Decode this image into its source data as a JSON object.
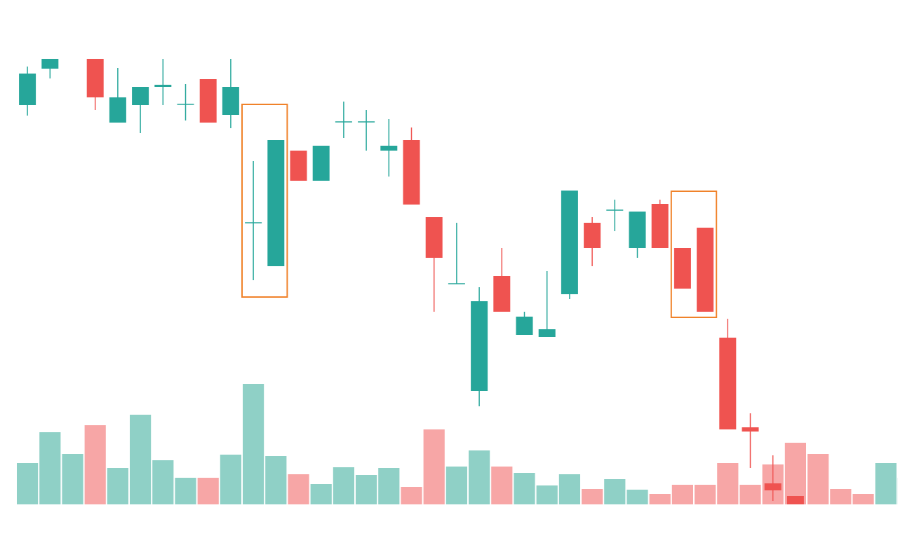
{
  "chart_data": {
    "type": "candlestick",
    "open": [
      570,
      622,
      null,
      636,
      545,
      570,
      596,
      571,
      607,
      556,
      402,
      340,
      505,
      462,
      546,
      546,
      505,
      520,
      410,
      315,
      162,
      326,
      242,
      239,
      300,
      402,
      420,
      366,
      429,
      366,
      395,
      238,
      110,
      30,
      12,
      null,
      null,
      null,
      null,
      null
    ],
    "high": [
      625,
      636,
      null,
      636,
      623,
      596,
      636,
      600,
      607,
      636,
      490,
      520,
      505,
      512,
      575,
      563,
      550,
      538,
      410,
      402,
      310,
      366,
      275,
      333,
      448,
      410,
      435,
      418,
      435,
      366,
      395,
      265,
      130,
      70,
      12,
      null,
      null,
      null,
      null,
      null
    ],
    "low": [
      555,
      608,
      null,
      563,
      545,
      530,
      570,
      548,
      545,
      537,
      320,
      340,
      462,
      462,
      523,
      505,
      468,
      428,
      275,
      315,
      140,
      275,
      242,
      239,
      293,
      340,
      390,
      352,
      366,
      308,
      275,
      107,
      52,
      5,
      0,
      null,
      null,
      null,
      null,
      null
    ],
    "close": [
      615,
      636,
      null,
      581,
      581,
      596,
      599,
      571,
      545,
      596,
      402,
      520,
      462,
      512,
      546,
      546,
      512,
      428,
      352,
      315,
      290,
      275,
      268,
      250,
      448,
      366,
      420,
      418,
      366,
      308,
      275,
      107,
      104,
      20,
      0,
      null,
      null,
      null,
      null,
      null
    ],
    "ylim": [
      0,
      640
    ],
    "up_color": "#26a69a",
    "down_color": "#ef5350",
    "volume": [
      59,
      103,
      72,
      113,
      52,
      128,
      63,
      38,
      38,
      71,
      172,
      69,
      43,
      29,
      53,
      42,
      52,
      25,
      107,
      54,
      77,
      54,
      45,
      27,
      43,
      22,
      36,
      21,
      15,
      28,
      28,
      59,
      28,
      57,
      88,
      72,
      22,
      15,
      59,
      38
    ],
    "volume_colors": [
      "#8fd0c6",
      "#8fd0c6",
      "#8fd0c6",
      "#f7a6a6",
      "#8fd0c6",
      "#8fd0c6",
      "#8fd0c6",
      "#8fd0c6",
      "#f7a6a6",
      "#8fd0c6",
      "#8fd0c6",
      "#8fd0c6",
      "#f7a6a6",
      "#8fd0c6",
      "#8fd0c6",
      "#8fd0c6",
      "#8fd0c6",
      "#f7a6a6",
      "#f7a6a6",
      "#8fd0c6",
      "#8fd0c6",
      "#f7a6a6",
      "#8fd0c6",
      "#8fd0c6",
      "#8fd0c6",
      "#f7a6a6",
      "#8fd0c6",
      "#8fd0c6",
      "#f7a6a6",
      "#f7a6a6",
      "#f7a6a6",
      "#f7a6a6",
      "#f7a6a6",
      "#f7a6a6",
      "#f7a6a6",
      "#f7a6a6",
      "#f7a6a6",
      "#f7a6a6",
      "#8fd0c6",
      "#8fd0c6"
    ],
    "volume_lim": [
      0,
      200
    ],
    "highlights": [
      {
        "start": 10,
        "end": 11,
        "low": 296,
        "high": 571,
        "color": "#f0822a"
      },
      {
        "start": 29,
        "end": 30,
        "low": 267,
        "high": 447,
        "color": "#f0822a"
      }
    ]
  }
}
